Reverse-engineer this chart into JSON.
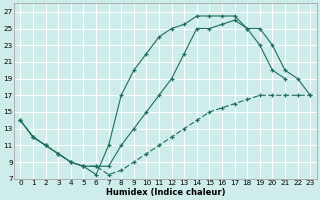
{
  "xlabel": "Humidex (Indice chaleur)",
  "background_color": "#ceecea",
  "grid_color": "#b8d8d6",
  "line_color": "#1e6e5e",
  "xlim": [
    -0.5,
    23.5
  ],
  "ylim": [
    7,
    28
  ],
  "yticks": [
    7,
    9,
    11,
    13,
    15,
    17,
    19,
    21,
    23,
    25,
    27
  ],
  "xticks": [
    0,
    1,
    2,
    3,
    4,
    5,
    6,
    7,
    8,
    9,
    10,
    11,
    12,
    13,
    14,
    15,
    16,
    17,
    18,
    19,
    20,
    21,
    22,
    23
  ],
  "line1_x": [
    0,
    1,
    2,
    3,
    4,
    5,
    6,
    7,
    8,
    9,
    10,
    11,
    12,
    13,
    14,
    15,
    16,
    17,
    18,
    19,
    20,
    21
  ],
  "line1_y": [
    14,
    12,
    11,
    10,
    9,
    8.5,
    7.5,
    11,
    17,
    20,
    22,
    24,
    25,
    25.5,
    26.5,
    26.5,
    26.5,
    26.5,
    25,
    23,
    20,
    19
  ],
  "line2_x": [
    0,
    1,
    2,
    3,
    4,
    5,
    6,
    7,
    8,
    9,
    10,
    11,
    12,
    13,
    14,
    15,
    16,
    17,
    18,
    19,
    20,
    21,
    22,
    23
  ],
  "line2_y": [
    14,
    12,
    11,
    10,
    9,
    8.5,
    8.5,
    8.5,
    11,
    13,
    15,
    17,
    19,
    22,
    25,
    25,
    25.5,
    26,
    25,
    25,
    23,
    20,
    19,
    17
  ],
  "line3_x": [
    0,
    1,
    2,
    3,
    4,
    5,
    6,
    7,
    8,
    9,
    10,
    11,
    12,
    13,
    14,
    15,
    16,
    17,
    18,
    19,
    20,
    21,
    22,
    23
  ],
  "line3_y": [
    14,
    12,
    11,
    10,
    9,
    8.5,
    8.5,
    7.5,
    8,
    9,
    10,
    11,
    12,
    13,
    14,
    15,
    15.5,
    16,
    16.5,
    17,
    17,
    17,
    17,
    17
  ]
}
